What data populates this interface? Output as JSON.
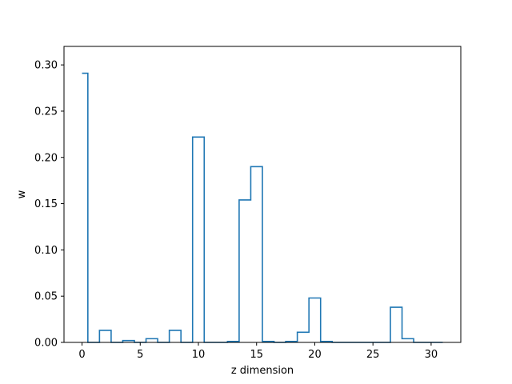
{
  "chart_data": {
    "type": "step",
    "xlabel": "z dimension",
    "ylabel": "w",
    "xlim": [
      -1.55,
      32.55
    ],
    "ylim": [
      0,
      0.32
    ],
    "xticks": [
      0,
      5,
      10,
      15,
      20,
      25,
      30
    ],
    "xtick_labels": [
      "0",
      "5",
      "10",
      "15",
      "20",
      "25",
      "30"
    ],
    "yticks": [
      0.0,
      0.05,
      0.1,
      0.15,
      0.2,
      0.25,
      0.3
    ],
    "ytick_labels": [
      "0.00",
      "0.05",
      "0.10",
      "0.15",
      "0.20",
      "0.25",
      "0.30"
    ],
    "grid": false,
    "legend": "none",
    "step_where": "mid",
    "series": [
      {
        "color": "#1f77b4",
        "x": [
          0,
          1,
          2,
          3,
          4,
          5,
          6,
          7,
          8,
          9,
          10,
          11,
          12,
          13,
          14,
          15,
          16,
          17,
          18,
          19,
          20,
          21,
          22,
          23,
          24,
          25,
          26,
          27,
          28,
          29,
          30,
          31
        ],
        "values": [
          0.291,
          0.0,
          0.013,
          0.0,
          0.002,
          0.0,
          0.004,
          0.0,
          0.013,
          0.0,
          0.222,
          0.0,
          0.0,
          0.001,
          0.154,
          0.19,
          0.001,
          0.0,
          0.001,
          0.011,
          0.048,
          0.001,
          0.0,
          0.0,
          0.0,
          0.0,
          0.0,
          0.038,
          0.004,
          0.0,
          0.0,
          0.0
        ]
      }
    ]
  }
}
